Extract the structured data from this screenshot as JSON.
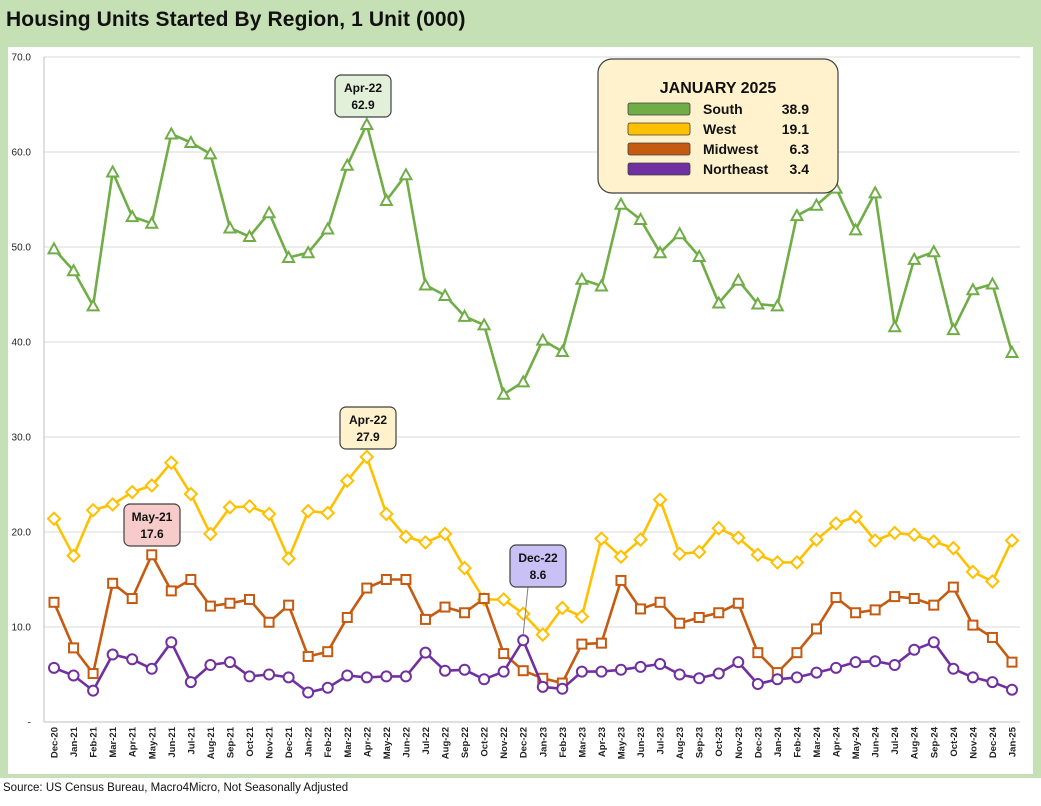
{
  "title": "Housing Units Started By Region, 1 Unit (000)",
  "source": "Source: US Census Bureau, Macro4Micro, Not Seasonally Adjusted",
  "chart_data": {
    "type": "line",
    "title": "Housing Units Started By Region, 1 Unit (000)",
    "ylim": [
      0,
      70
    ],
    "yticks": [
      "-",
      "10.0",
      "20.0",
      "30.0",
      "40.0",
      "50.0",
      "60.0",
      "70.0"
    ],
    "grid": true,
    "categories": [
      "Dec-20",
      "Jan-21",
      "Feb-21",
      "Mar-21",
      "Apr-21",
      "May-21",
      "Jun-21",
      "Jul-21",
      "Aug-21",
      "Sep-21",
      "Oct-21",
      "Nov-21",
      "Dec-21",
      "Jan-22",
      "Feb-22",
      "Mar-22",
      "Apr-22",
      "May-22",
      "Jun-22",
      "Jul-22",
      "Aug-22",
      "Sep-22",
      "Oct-22",
      "Nov-22",
      "Dec-22",
      "Jan-23",
      "Feb-23",
      "Mar-23",
      "Apr-23",
      "May-23",
      "Jun-23",
      "Jul-23",
      "Aug-23",
      "Sep-23",
      "Oct-23",
      "Nov-23",
      "Dec-23",
      "Jan-24",
      "Feb-24",
      "Mar-24",
      "Apr-24",
      "May-24",
      "Jun-24",
      "Jul-24",
      "Aug-24",
      "Sep-24",
      "Oct-24",
      "Nov-24",
      "Dec-24",
      "Jan-25"
    ],
    "series": [
      {
        "name": "South",
        "color": "#70ad47",
        "marker": "triangle",
        "values": [
          49.8,
          47.5,
          43.8,
          57.9,
          53.2,
          52.5,
          61.9,
          61.0,
          59.8,
          52.0,
          51.1,
          53.6,
          48.9,
          49.4,
          51.9,
          58.6,
          62.9,
          54.9,
          57.6,
          46.0,
          44.9,
          42.7,
          41.8,
          34.5,
          35.8,
          40.2,
          39.0,
          46.6,
          45.9,
          54.5,
          52.9,
          49.4,
          51.4,
          49.0,
          44.1,
          46.5,
          44.0,
          43.8,
          53.3,
          54.4,
          56.2,
          51.8,
          55.7,
          41.6,
          48.7,
          49.5,
          41.3,
          45.5,
          46.1,
          38.9
        ]
      },
      {
        "name": "West",
        "color": "#ffc000",
        "marker": "diamond",
        "values": [
          21.4,
          17.5,
          22.3,
          22.9,
          24.2,
          24.9,
          27.3,
          24.0,
          19.8,
          22.6,
          22.7,
          21.9,
          17.2,
          22.2,
          22.0,
          25.4,
          27.9,
          21.9,
          19.5,
          18.9,
          19.8,
          16.2,
          12.9,
          12.9,
          11.4,
          9.2,
          12.0,
          11.1,
          19.3,
          17.4,
          19.2,
          23.4,
          17.7,
          17.9,
          20.4,
          19.4,
          17.6,
          16.8,
          16.8,
          19.2,
          20.9,
          21.6,
          19.1,
          19.9,
          19.7,
          19.0,
          18.3,
          15.8,
          14.8,
          19.1
        ]
      },
      {
        "name": "Midwest",
        "color": "#c55a11",
        "marker": "square",
        "values": [
          12.6,
          7.8,
          5.1,
          14.6,
          13.0,
          17.6,
          13.8,
          15.0,
          12.2,
          12.5,
          12.9,
          10.5,
          12.3,
          6.9,
          7.4,
          11.0,
          14.1,
          15.0,
          15.0,
          10.8,
          12.1,
          11.5,
          13.0,
          7.2,
          5.4,
          4.6,
          4.1,
          8.2,
          8.3,
          14.9,
          11.9,
          12.6,
          10.4,
          11.0,
          11.5,
          12.5,
          7.3,
          5.2,
          7.3,
          9.8,
          13.1,
          11.5,
          11.8,
          13.2,
          13.0,
          12.3,
          14.2,
          10.2,
          8.9,
          6.3
        ]
      },
      {
        "name": "Northeast",
        "color": "#7030a0",
        "marker": "circle",
        "values": [
          5.7,
          4.9,
          3.3,
          7.1,
          6.6,
          5.6,
          8.4,
          4.2,
          6.0,
          6.3,
          4.8,
          5.0,
          4.7,
          3.1,
          3.6,
          4.9,
          4.7,
          4.8,
          4.8,
          7.3,
          5.4,
          5.5,
          4.5,
          5.3,
          8.6,
          3.7,
          3.5,
          5.3,
          5.3,
          5.5,
          5.8,
          6.1,
          5.0,
          4.6,
          5.1,
          6.3,
          4.0,
          4.5,
          4.7,
          5.2,
          5.7,
          6.3,
          6.4,
          6.0,
          7.6,
          8.4,
          5.6,
          4.7,
          4.2,
          3.4
        ]
      }
    ],
    "legend": {
      "title": "JANUARY 2025",
      "position": "top-right",
      "entries": [
        {
          "name": "South",
          "value": "38.9"
        },
        {
          "name": "West",
          "value": "19.1"
        },
        {
          "name": "Midwest",
          "value": "6.3"
        },
        {
          "name": "Northeast",
          "value": "3.4"
        }
      ]
    },
    "callouts": [
      {
        "series": "South",
        "category": "Apr-22",
        "line1": "Apr-22",
        "line2": "62.9",
        "fill": "#e2f0d9"
      },
      {
        "series": "West",
        "category": "Apr-22",
        "line1": "Apr-22",
        "line2": "27.9",
        "fill": "#fff2cc"
      },
      {
        "series": "Midwest",
        "category": "May-21",
        "line1": "May-21",
        "line2": "17.6",
        "fill": "#f8cbcb"
      },
      {
        "series": "Northeast",
        "category": "Dec-22",
        "line1": "Dec-22",
        "line2": "8.6",
        "fill": "#c9c0f5"
      }
    ]
  }
}
